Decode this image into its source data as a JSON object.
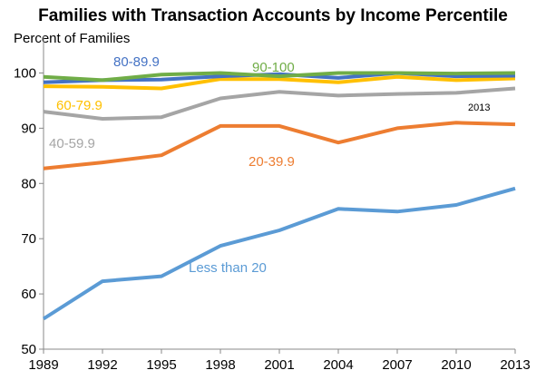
{
  "chart_data": {
    "type": "line",
    "title": "Families with Transaction Accounts by Income Percentile",
    "xlabel": "",
    "ylabel": "Percent of Families",
    "x": [
      "1989",
      "1992",
      "1995",
      "1998",
      "2001",
      "2004",
      "2007",
      "2010",
      "2013"
    ],
    "yticks": [
      50,
      60,
      70,
      80,
      90,
      100
    ],
    "ylim": [
      50,
      105
    ],
    "grid": false,
    "legend": "none (series labeled directly on plot)",
    "annotation": "2013",
    "series": [
      {
        "name": "Less than 20",
        "color": "#5B9BD5",
        "values": [
          55.5,
          62.3,
          63.2,
          68.7,
          71.5,
          75.4,
          74.9,
          76.1,
          79.1
        ]
      },
      {
        "name": "20-39.9",
        "color": "#ED7D31",
        "values": [
          82.7,
          83.8,
          85.1,
          90.4,
          90.4,
          87.4,
          90.0,
          91.0,
          90.7
        ]
      },
      {
        "name": "40-59.9",
        "color": "#A5A5A5",
        "values": [
          93.0,
          91.7,
          92.0,
          95.4,
          96.6,
          95.9,
          96.2,
          96.4,
          97.2
        ]
      },
      {
        "name": "60-79.9",
        "color": "#FFC000",
        "values": [
          97.6,
          97.5,
          97.2,
          98.9,
          98.9,
          98.3,
          99.3,
          98.7,
          99.0
        ]
      },
      {
        "name": "80-89.9",
        "color": "#4472C4",
        "values": [
          98.3,
          98.7,
          98.8,
          99.4,
          99.8,
          99.1,
          100.0,
          99.4,
          99.5
        ]
      },
      {
        "name": "90-100",
        "color": "#70AD47",
        "values": [
          99.3,
          98.7,
          99.7,
          100.0,
          99.4,
          100.0,
          100.0,
          99.9,
          100.0
        ]
      }
    ]
  }
}
